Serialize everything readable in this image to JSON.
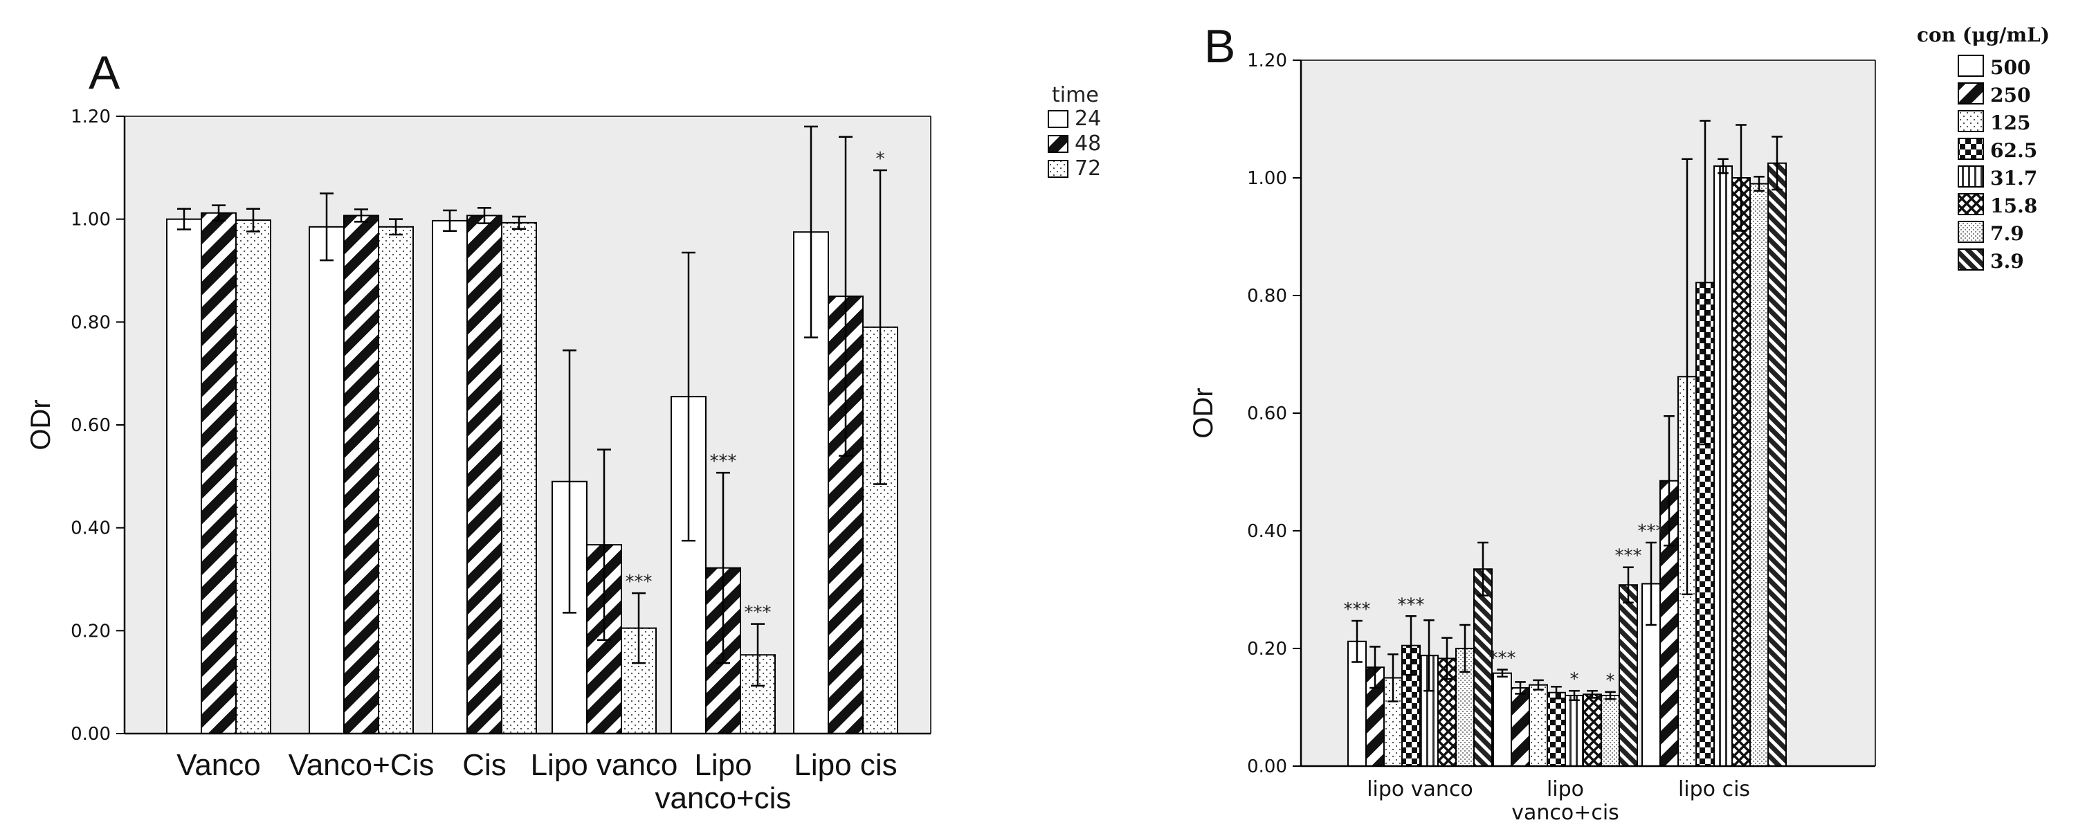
{
  "colors": {
    "plot_bg": "#ececec",
    "bar_edge": "#000000",
    "axis": "#000000"
  },
  "chart_data": [
    {
      "panel_label": "A",
      "type": "bar",
      "ylabel": "ODr",
      "ylim": [
        0,
        1.2
      ],
      "yticks": [
        "0.00",
        "0.20",
        "0.40",
        "0.60",
        "0.80",
        "1.00",
        "1.20"
      ],
      "categories": [
        "Vanco",
        "Vanco+Cis",
        "Cis",
        "Lipo vanco",
        "Lipo vanco+cis",
        "Lipo cis"
      ],
      "category_lines": [
        [
          "Vanco"
        ],
        [
          "Vanco+Cis"
        ],
        [
          "Cis"
        ],
        [
          "Lipo vanco"
        ],
        [
          "Lipo",
          "vanco+cis"
        ],
        [
          "Lipo cis"
        ]
      ],
      "legend": {
        "title": "time",
        "position": "top-right, outside"
      },
      "series": [
        {
          "name": "24",
          "pattern": "white",
          "values": [
            1.0,
            0.985,
            0.997,
            0.49,
            0.655,
            0.975
          ],
          "errors": [
            0.02,
            0.065,
            0.02,
            0.255,
            0.28,
            0.205
          ]
        },
        {
          "name": "48",
          "pattern": "diagonal-bold",
          "values": [
            1.012,
            1.007,
            1.007,
            0.367,
            0.322,
            0.85
          ],
          "errors": [
            0.015,
            0.012,
            0.015,
            0.185,
            0.185,
            0.31
          ]
        },
        {
          "name": "72",
          "pattern": "dots",
          "values": [
            0.998,
            0.985,
            0.993,
            0.205,
            0.153,
            0.79
          ],
          "errors": [
            0.022,
            0.015,
            0.012,
            0.068,
            0.06,
            0.305
          ]
        }
      ],
      "annotations": [
        {
          "category": 3,
          "series": 2,
          "text": "***"
        },
        {
          "category": 4,
          "series": 1,
          "text": "***"
        },
        {
          "category": 4,
          "series": 2,
          "text": "***"
        },
        {
          "category": 5,
          "series": 2,
          "text": "*"
        }
      ]
    },
    {
      "panel_label": "B",
      "type": "bar",
      "ylabel": "ODr",
      "ylim": [
        0,
        1.2
      ],
      "yticks": [
        "0.00",
        "0.20",
        "0.40",
        "0.60",
        "0.80",
        "1.00",
        "1.20"
      ],
      "categories": [
        "lipo vanco",
        "lipo vanco+cis",
        "lipo cis"
      ],
      "category_lines": [
        [
          "lipo vanco"
        ],
        [
          "lipo",
          "vanco+cis"
        ],
        [
          "lipo cis"
        ]
      ],
      "legend": {
        "title": "con (μg/mL)",
        "position": "top-right, outside"
      },
      "series": [
        {
          "name": "500",
          "pattern": "white",
          "values": [
            0.212,
            0.158,
            0.31
          ],
          "errors": [
            0.035,
            0.006,
            0.07
          ]
        },
        {
          "name": "250",
          "pattern": "diagonal-bold",
          "values": [
            0.168,
            0.133,
            0.485
          ],
          "errors": [
            0.035,
            0.01,
            0.11
          ]
        },
        {
          "name": "125",
          "pattern": "dots",
          "values": [
            0.15,
            0.138,
            0.662
          ],
          "errors": [
            0.04,
            0.008,
            0.37
          ]
        },
        {
          "name": "62.5",
          "pattern": "checker",
          "values": [
            0.205,
            0.125,
            0.822
          ],
          "errors": [
            0.05,
            0.01,
            0.275
          ]
        },
        {
          "name": "31.7",
          "pattern": "vertical-lines",
          "values": [
            0.188,
            0.12,
            1.02
          ],
          "errors": [
            0.06,
            0.008,
            0.012
          ]
        },
        {
          "name": "15.8",
          "pattern": "crosshatch",
          "values": [
            0.183,
            0.122,
            1.0
          ],
          "errors": [
            0.035,
            0.006,
            0.09
          ]
        },
        {
          "name": "7.9",
          "pattern": "fine-dots",
          "values": [
            0.2,
            0.12,
            0.99
          ],
          "errors": [
            0.04,
            0.006,
            0.012
          ]
        },
        {
          "name": "3.9",
          "pattern": "diagonal-dense",
          "values": [
            0.335,
            0.308,
            1.025
          ],
          "errors": [
            0.045,
            0.03,
            0.045
          ]
        }
      ],
      "annotations": [
        {
          "category": 0,
          "series": 0,
          "text": "***"
        },
        {
          "category": 0,
          "series": 3,
          "text": "***"
        },
        {
          "category": 1,
          "series": 0,
          "text": "***"
        },
        {
          "category": 1,
          "series": 4,
          "text": "*"
        },
        {
          "category": 1,
          "series": 6,
          "text": "*"
        },
        {
          "category": 1,
          "series": 7,
          "text": "***"
        },
        {
          "category": 2,
          "series": 0,
          "text": "***"
        }
      ]
    }
  ]
}
